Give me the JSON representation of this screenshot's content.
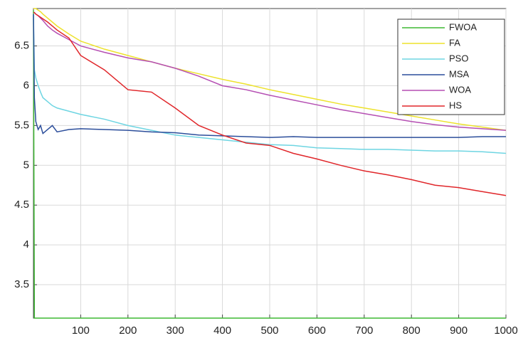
{
  "chart_data": {
    "type": "line",
    "x": [
      0,
      2,
      5,
      10,
      15,
      20,
      30,
      40,
      50,
      75,
      100,
      150,
      200,
      250,
      300,
      350,
      400,
      450,
      500,
      550,
      600,
      650,
      700,
      750,
      800,
      850,
      900,
      950,
      1000
    ],
    "series": [
      {
        "name": "FWOA",
        "color": "#3fb934",
        "values": [
          6.95,
          3.08,
          3.08,
          3.08,
          3.08,
          3.08,
          3.08,
          3.08,
          3.08,
          3.08,
          3.08,
          3.08,
          3.08,
          3.08,
          3.08,
          3.08,
          3.08,
          3.08,
          3.08,
          3.08,
          3.08,
          3.08,
          3.08,
          3.08,
          3.08,
          3.08,
          3.08,
          3.08,
          3.08
        ]
      },
      {
        "name": "FA",
        "color": "#ede22c",
        "values": [
          6.97,
          6.97,
          6.97,
          6.95,
          6.93,
          6.9,
          6.85,
          6.8,
          6.75,
          6.65,
          6.56,
          6.46,
          6.38,
          6.3,
          6.22,
          6.15,
          6.08,
          6.02,
          5.95,
          5.89,
          5.83,
          5.77,
          5.72,
          5.67,
          5.62,
          5.57,
          5.52,
          5.48,
          5.44
        ]
      },
      {
        "name": "PSO",
        "color": "#6ed5e2",
        "values": [
          6.9,
          6.2,
          6.1,
          6.0,
          5.92,
          5.85,
          5.8,
          5.75,
          5.72,
          5.68,
          5.64,
          5.58,
          5.5,
          5.44,
          5.38,
          5.35,
          5.32,
          5.29,
          5.26,
          5.25,
          5.22,
          5.21,
          5.2,
          5.2,
          5.19,
          5.18,
          5.18,
          5.17,
          5.15
        ]
      },
      {
        "name": "MSA",
        "color": "#2c4e9b",
        "values": [
          6.9,
          5.85,
          5.55,
          5.45,
          5.5,
          5.4,
          5.45,
          5.5,
          5.42,
          5.45,
          5.46,
          5.45,
          5.44,
          5.42,
          5.41,
          5.38,
          5.37,
          5.36,
          5.35,
          5.36,
          5.35,
          5.35,
          5.35,
          5.35,
          5.35,
          5.35,
          5.35,
          5.36,
          5.36
        ]
      },
      {
        "name": "WOA",
        "color": "#b54fb3",
        "values": [
          6.92,
          6.92,
          6.9,
          6.88,
          6.85,
          6.82,
          6.75,
          6.7,
          6.66,
          6.58,
          6.5,
          6.42,
          6.35,
          6.3,
          6.22,
          6.12,
          6.0,
          5.95,
          5.88,
          5.82,
          5.76,
          5.7,
          5.65,
          5.6,
          5.55,
          5.51,
          5.48,
          5.46,
          5.44
        ]
      },
      {
        "name": "HS",
        "color": "#e0262a",
        "values": [
          6.92,
          6.92,
          6.9,
          6.88,
          6.86,
          6.84,
          6.8,
          6.75,
          6.7,
          6.6,
          6.38,
          6.2,
          5.95,
          5.92,
          5.72,
          5.5,
          5.38,
          5.28,
          5.25,
          5.15,
          5.08,
          5.0,
          4.93,
          4.88,
          4.82,
          4.75,
          4.72,
          4.67,
          4.62
        ]
      }
    ],
    "xlim": [
      0,
      1000
    ],
    "xticks": [
      100,
      200,
      300,
      400,
      500,
      600,
      700,
      800,
      900,
      1000
    ],
    "ylim": [
      3.08,
      6.97
    ],
    "yticks": [
      3.5,
      4,
      4.5,
      5,
      5.5,
      6,
      6.5
    ],
    "grid": true,
    "legend": "upper right"
  }
}
